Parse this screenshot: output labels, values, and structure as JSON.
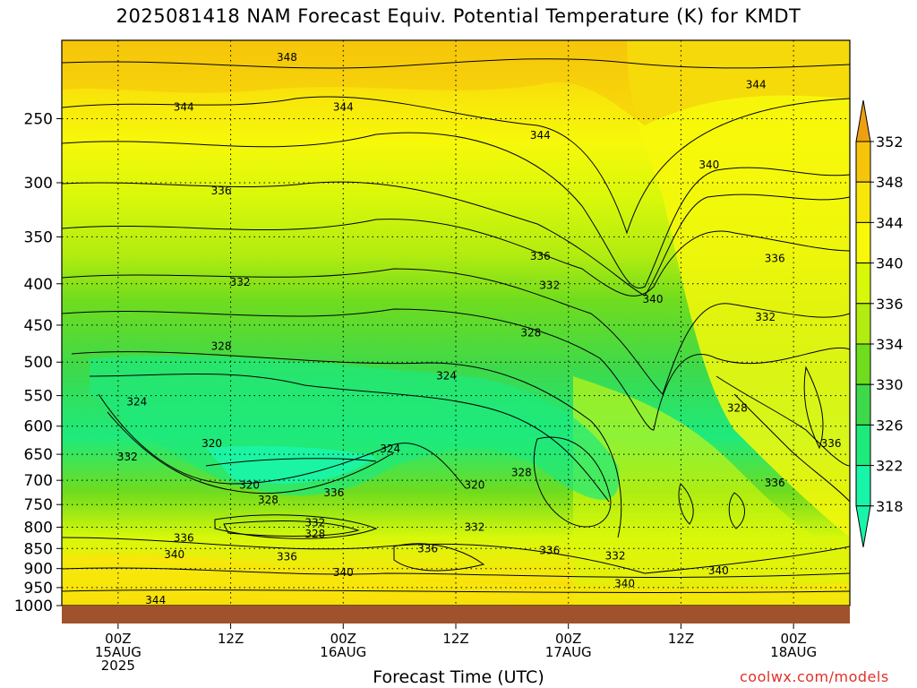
{
  "title": "2025081418 NAM Forecast Equiv. Potential Temperature (K) for KMDT",
  "credit": "coolwx.com/models",
  "colors": {
    "c318": "#19f5a8",
    "c322": "#1eea7c",
    "c326": "#3ed94a",
    "c330": "#70dc1e",
    "c334": "#b2ec10",
    "c336": "#d8f80a",
    "c340": "#f7f80a",
    "c344": "#f8e60a",
    "c348": "#f6c50b",
    "c352": "#eea012",
    "ground": "#a0522d"
  },
  "chart_data": {
    "type": "heatmap",
    "variable": "Equiv. Potential Temperature (K)",
    "station": "KMDT",
    "xlabel": "Forecast Time (UTC)",
    "x_ticks": [
      {
        "hour": 6,
        "label": [
          "00Z",
          "15AUG",
          "2025"
        ]
      },
      {
        "hour": 18,
        "label": [
          "12Z"
        ]
      },
      {
        "hour": 30,
        "label": [
          "00Z",
          "16AUG"
        ]
      },
      {
        "hour": 42,
        "label": [
          "12Z"
        ]
      },
      {
        "hour": 54,
        "label": [
          "00Z",
          "17AUG"
        ]
      },
      {
        "hour": 66,
        "label": [
          "12Z"
        ]
      },
      {
        "hour": 78,
        "label": [
          "00Z",
          "18AUG"
        ]
      }
    ],
    "xlim": [
      0,
      84
    ],
    "ylabel": "",
    "y_levels": [
      250,
      300,
      350,
      400,
      450,
      500,
      550,
      600,
      650,
      700,
      750,
      800,
      850,
      900,
      950,
      1000
    ],
    "ylim": [
      200,
      1000
    ],
    "y_scale": "log",
    "colorbar_levels": [
      352,
      348,
      344,
      340,
      336,
      334,
      330,
      326,
      322,
      318
    ],
    "contour_labels": [
      {
        "text": "348",
        "hour": 24,
        "p": 210
      },
      {
        "text": "344",
        "hour": 13,
        "p": 242
      },
      {
        "text": "344",
        "hour": 30,
        "p": 242
      },
      {
        "text": "344",
        "hour": 51,
        "p": 262
      },
      {
        "text": "344",
        "hour": 74,
        "p": 227
      },
      {
        "text": "340",
        "hour": 69,
        "p": 285
      },
      {
        "text": "336",
        "hour": 17,
        "p": 307
      },
      {
        "text": "336",
        "hour": 51,
        "p": 370
      },
      {
        "text": "336",
        "hour": 76,
        "p": 372
      },
      {
        "text": "332",
        "hour": 19,
        "p": 398
      },
      {
        "text": "332",
        "hour": 52,
        "p": 402
      },
      {
        "text": "340",
        "hour": 63,
        "p": 418
      },
      {
        "text": "332",
        "hour": 75,
        "p": 440
      },
      {
        "text": "328",
        "hour": 17,
        "p": 478
      },
      {
        "text": "328",
        "hour": 50,
        "p": 460
      },
      {
        "text": "324",
        "hour": 41,
        "p": 520
      },
      {
        "text": "328",
        "hour": 72,
        "p": 570
      },
      {
        "text": "324",
        "hour": 8,
        "p": 560
      },
      {
        "text": "320",
        "hour": 16,
        "p": 630
      },
      {
        "text": "324",
        "hour": 35,
        "p": 640
      },
      {
        "text": "332",
        "hour": 7,
        "p": 655
      },
      {
        "text": "328",
        "hour": 49,
        "p": 685
      },
      {
        "text": "320",
        "hour": 20,
        "p": 710
      },
      {
        "text": "320",
        "hour": 44,
        "p": 710
      },
      {
        "text": "328",
        "hour": 22,
        "p": 740
      },
      {
        "text": "336",
        "hour": 29,
        "p": 725
      },
      {
        "text": "336",
        "hour": 76,
        "p": 705
      },
      {
        "text": "332",
        "hour": 27,
        "p": 790
      },
      {
        "text": "328",
        "hour": 27,
        "p": 815
      },
      {
        "text": "332",
        "hour": 44,
        "p": 800
      },
      {
        "text": "336",
        "hour": 13,
        "p": 825
      },
      {
        "text": "340",
        "hour": 12,
        "p": 865
      },
      {
        "text": "336",
        "hour": 24,
        "p": 870
      },
      {
        "text": "336",
        "hour": 39,
        "p": 850
      },
      {
        "text": "336",
        "hour": 52,
        "p": 855
      },
      {
        "text": "332",
        "hour": 59,
        "p": 868
      },
      {
        "text": "340",
        "hour": 30,
        "p": 910
      },
      {
        "text": "340",
        "hour": 70,
        "p": 905
      },
      {
        "text": "340",
        "hour": 60,
        "p": 940
      },
      {
        "text": "344",
        "hour": 10,
        "p": 985
      },
      {
        "text": "336",
        "hour": 82,
        "p": 630
      }
    ]
  }
}
